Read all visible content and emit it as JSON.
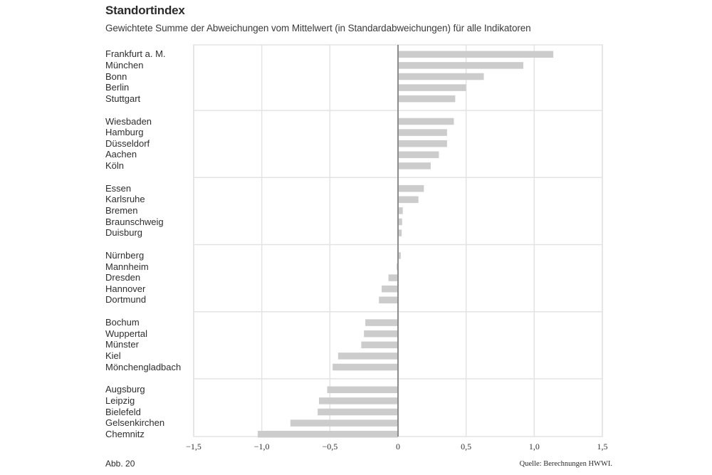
{
  "chart_data": {
    "type": "bar",
    "orientation": "horizontal",
    "title": "Standortindex",
    "subtitle": "Gewichtete Summe der Abweichungen vom Mittelwert (in Standardabweichungen) für alle Indikatoren",
    "xlabel": "",
    "ylabel": "",
    "xlim": [
      -1.5,
      1.5
    ],
    "xticks": [
      -1.5,
      -1.0,
      -0.5,
      0,
      0.5,
      1.0,
      1.5
    ],
    "xtick_labels": [
      "−1,5",
      "−1,0",
      "−0,5",
      "0",
      "0,5",
      "1,0",
      "1,5"
    ],
    "grid": true,
    "bar_color": "#cccccc",
    "groups": [
      [
        "Frankfurt a. M.",
        "München",
        "Bonn",
        "Berlin",
        "Stuttgart"
      ],
      [
        "Wiesbaden",
        "Hamburg",
        "Düsseldorf",
        "Aachen",
        "Köln"
      ],
      [
        "Essen",
        "Karlsruhe",
        "Bremen",
        "Braunschweig",
        "Duisburg"
      ],
      [
        "Nürnberg",
        "Mannheim",
        "Dresden",
        "Hannover",
        "Dortmund"
      ],
      [
        "Bochum",
        "Wuppertal",
        "Münster",
        "Kiel",
        "Mönchengladbach"
      ],
      [
        "Augsburg",
        "Leipzig",
        "Bielefeld",
        "Gelsenkirchen",
        "Chemnitz"
      ]
    ],
    "categories": [
      "Frankfurt a. M.",
      "München",
      "Bonn",
      "Berlin",
      "Stuttgart",
      "Wiesbaden",
      "Hamburg",
      "Düsseldorf",
      "Aachen",
      "Köln",
      "Essen",
      "Karlsruhe",
      "Bremen",
      "Braunschweig",
      "Duisburg",
      "Nürnberg",
      "Mannheim",
      "Dresden",
      "Hannover",
      "Dortmund",
      "Bochum",
      "Wuppertal",
      "Münster",
      "Kiel",
      "Mönchengladbach",
      "Augsburg",
      "Leipzig",
      "Bielefeld",
      "Gelsenkirchen",
      "Chemnitz"
    ],
    "values": [
      1.14,
      0.92,
      0.63,
      0.5,
      0.42,
      0.41,
      0.36,
      0.36,
      0.3,
      0.24,
      0.19,
      0.15,
      0.035,
      0.03,
      0.027,
      0.02,
      -0.01,
      -0.07,
      -0.12,
      -0.14,
      -0.24,
      -0.25,
      -0.27,
      -0.44,
      -0.48,
      -0.52,
      -0.58,
      -0.59,
      -0.79,
      -1.03
    ]
  },
  "footer": {
    "figure_number": "Abb. 20",
    "source": "Quelle: Berechnungen HWWI."
  }
}
